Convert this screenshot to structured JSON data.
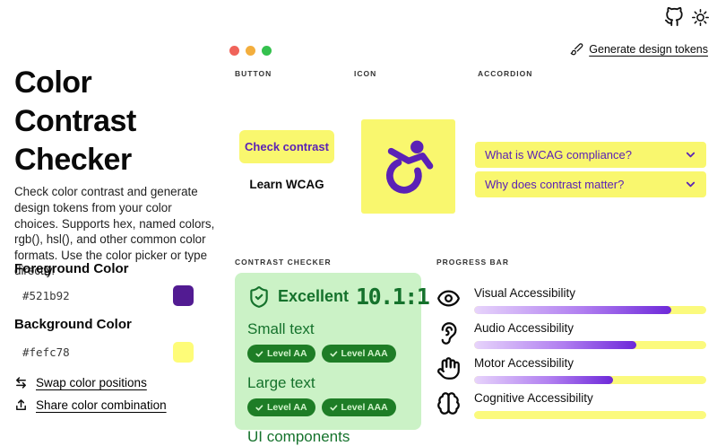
{
  "theme": {
    "yellow": "#f9f76e",
    "accent_purple": "#5b21b6",
    "green_panel_bg": "#cbf2c6",
    "green_dark": "#15722c",
    "badge_green": "#1e7d26",
    "progress_track_yellow": "#fbfa7d",
    "progress_gradient": [
      "#e7d4fb",
      "#6d28d9"
    ],
    "dot_colors": [
      "#f0635a",
      "#f3ae3d",
      "#35c14e"
    ]
  },
  "topbar": {
    "icons": [
      "github-icon",
      "sun-icon"
    ],
    "generate_tokens_label": "Generate design tokens"
  },
  "sidebar": {
    "title": "Color Contrast Checker",
    "description": "Check color contrast and generate design tokens from your color choices. Supports hex, named colors, rgb(), hsl(), and other common color formats. Use the color picker or type directly.",
    "foreground": {
      "label": "Foreground Color",
      "value": "#521b92"
    },
    "background": {
      "label": "Background Color",
      "value": "#fefc78"
    },
    "swap_label": "Swap color positions",
    "share_label": "Share color combination"
  },
  "sections": {
    "button": {
      "label": "BUTTON",
      "primary_button": "Check contrast",
      "secondary_button": "Learn WCAG"
    },
    "icon": {
      "label": "ICON",
      "icon": "accessibility-wheelchair-icon"
    },
    "accordion": {
      "label": "ACCORDION",
      "items": [
        {
          "question": "What is WCAG compliance?"
        },
        {
          "question": "Why does contrast matter?"
        }
      ]
    },
    "contrast_checker": {
      "label": "CONTRAST CHECKER",
      "rating": "Excellent",
      "ratio": "10.1:1",
      "groups": [
        {
          "name": "Small text",
          "badges": [
            "Level AA",
            "Level AAA"
          ]
        },
        {
          "name": "Large text",
          "badges": [
            "Level AA",
            "Level AAA"
          ]
        },
        {
          "name": "UI components",
          "badges": []
        }
      ]
    },
    "progress": {
      "label": "PROGRESS BAR",
      "items": [
        {
          "name": "Visual Accessibility",
          "icon": "eye-icon",
          "percent": 85
        },
        {
          "name": "Audio Accessibility",
          "icon": "ear-icon",
          "percent": 70
        },
        {
          "name": "Motor Accessibility",
          "icon": "hand-icon",
          "percent": 60
        },
        {
          "name": "Cognitive Accessibility",
          "icon": "brain-icon"
        }
      ]
    }
  }
}
